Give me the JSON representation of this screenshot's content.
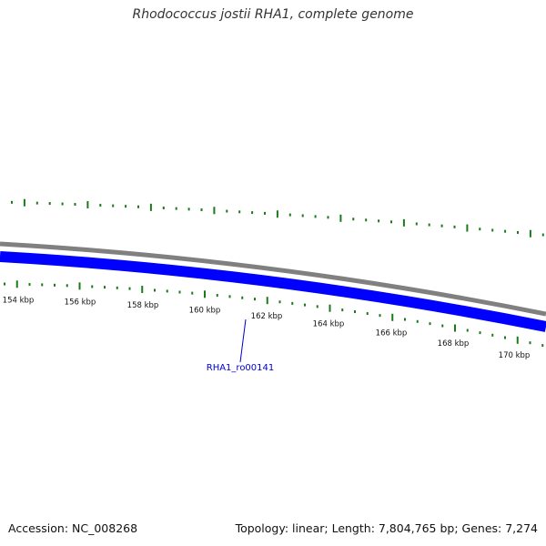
{
  "title": "Rhodococcus jostii RHA1, complete genome",
  "footer": {
    "accession": "Accession: NC_008268",
    "summary": "Topology: linear; Length: 7,804,765 bp; Genes: 7,274"
  },
  "colors": {
    "backbone": "#808080",
    "gene_strand": "#0000ff",
    "ticks": "#1a7a1a",
    "gene_label": "#0000cc"
  },
  "scale_labels": [
    "154 kbp",
    "156 kbp",
    "158 kbp",
    "160 kbp",
    "162 kbp",
    "164 kbp",
    "166 kbp",
    "168 kbp",
    "170 kbp"
  ],
  "gene_label": "RHA1_ro00141"
}
